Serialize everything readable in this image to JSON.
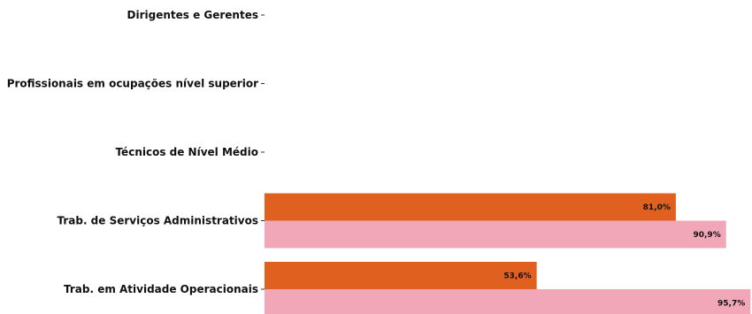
{
  "chart_data": {
    "type": "bar",
    "orientation": "horizontal",
    "categories": [
      "Dirigentes e Gerentes",
      "Profissionais em ocupações nível superior",
      "Técnicos de Nível Médio",
      "Trab. de Serviços Administrativos",
      "Trab. em Atividade Operacionais"
    ],
    "series": [
      {
        "color": "#e0611f",
        "values": [
          null,
          null,
          null,
          81.0,
          53.6
        ],
        "labels": [
          "",
          "",
          "",
          "81,0%",
          "53,6%"
        ]
      },
      {
        "color": "#f2a7b8",
        "values": [
          null,
          null,
          null,
          90.9,
          95.7
        ],
        "labels": [
          "",
          "",
          "",
          "90,9%",
          "95,7%"
        ]
      }
    ],
    "xlim": [
      0,
      96
    ],
    "grid": false,
    "xlabel": "",
    "ylabel": "",
    "title": ""
  }
}
